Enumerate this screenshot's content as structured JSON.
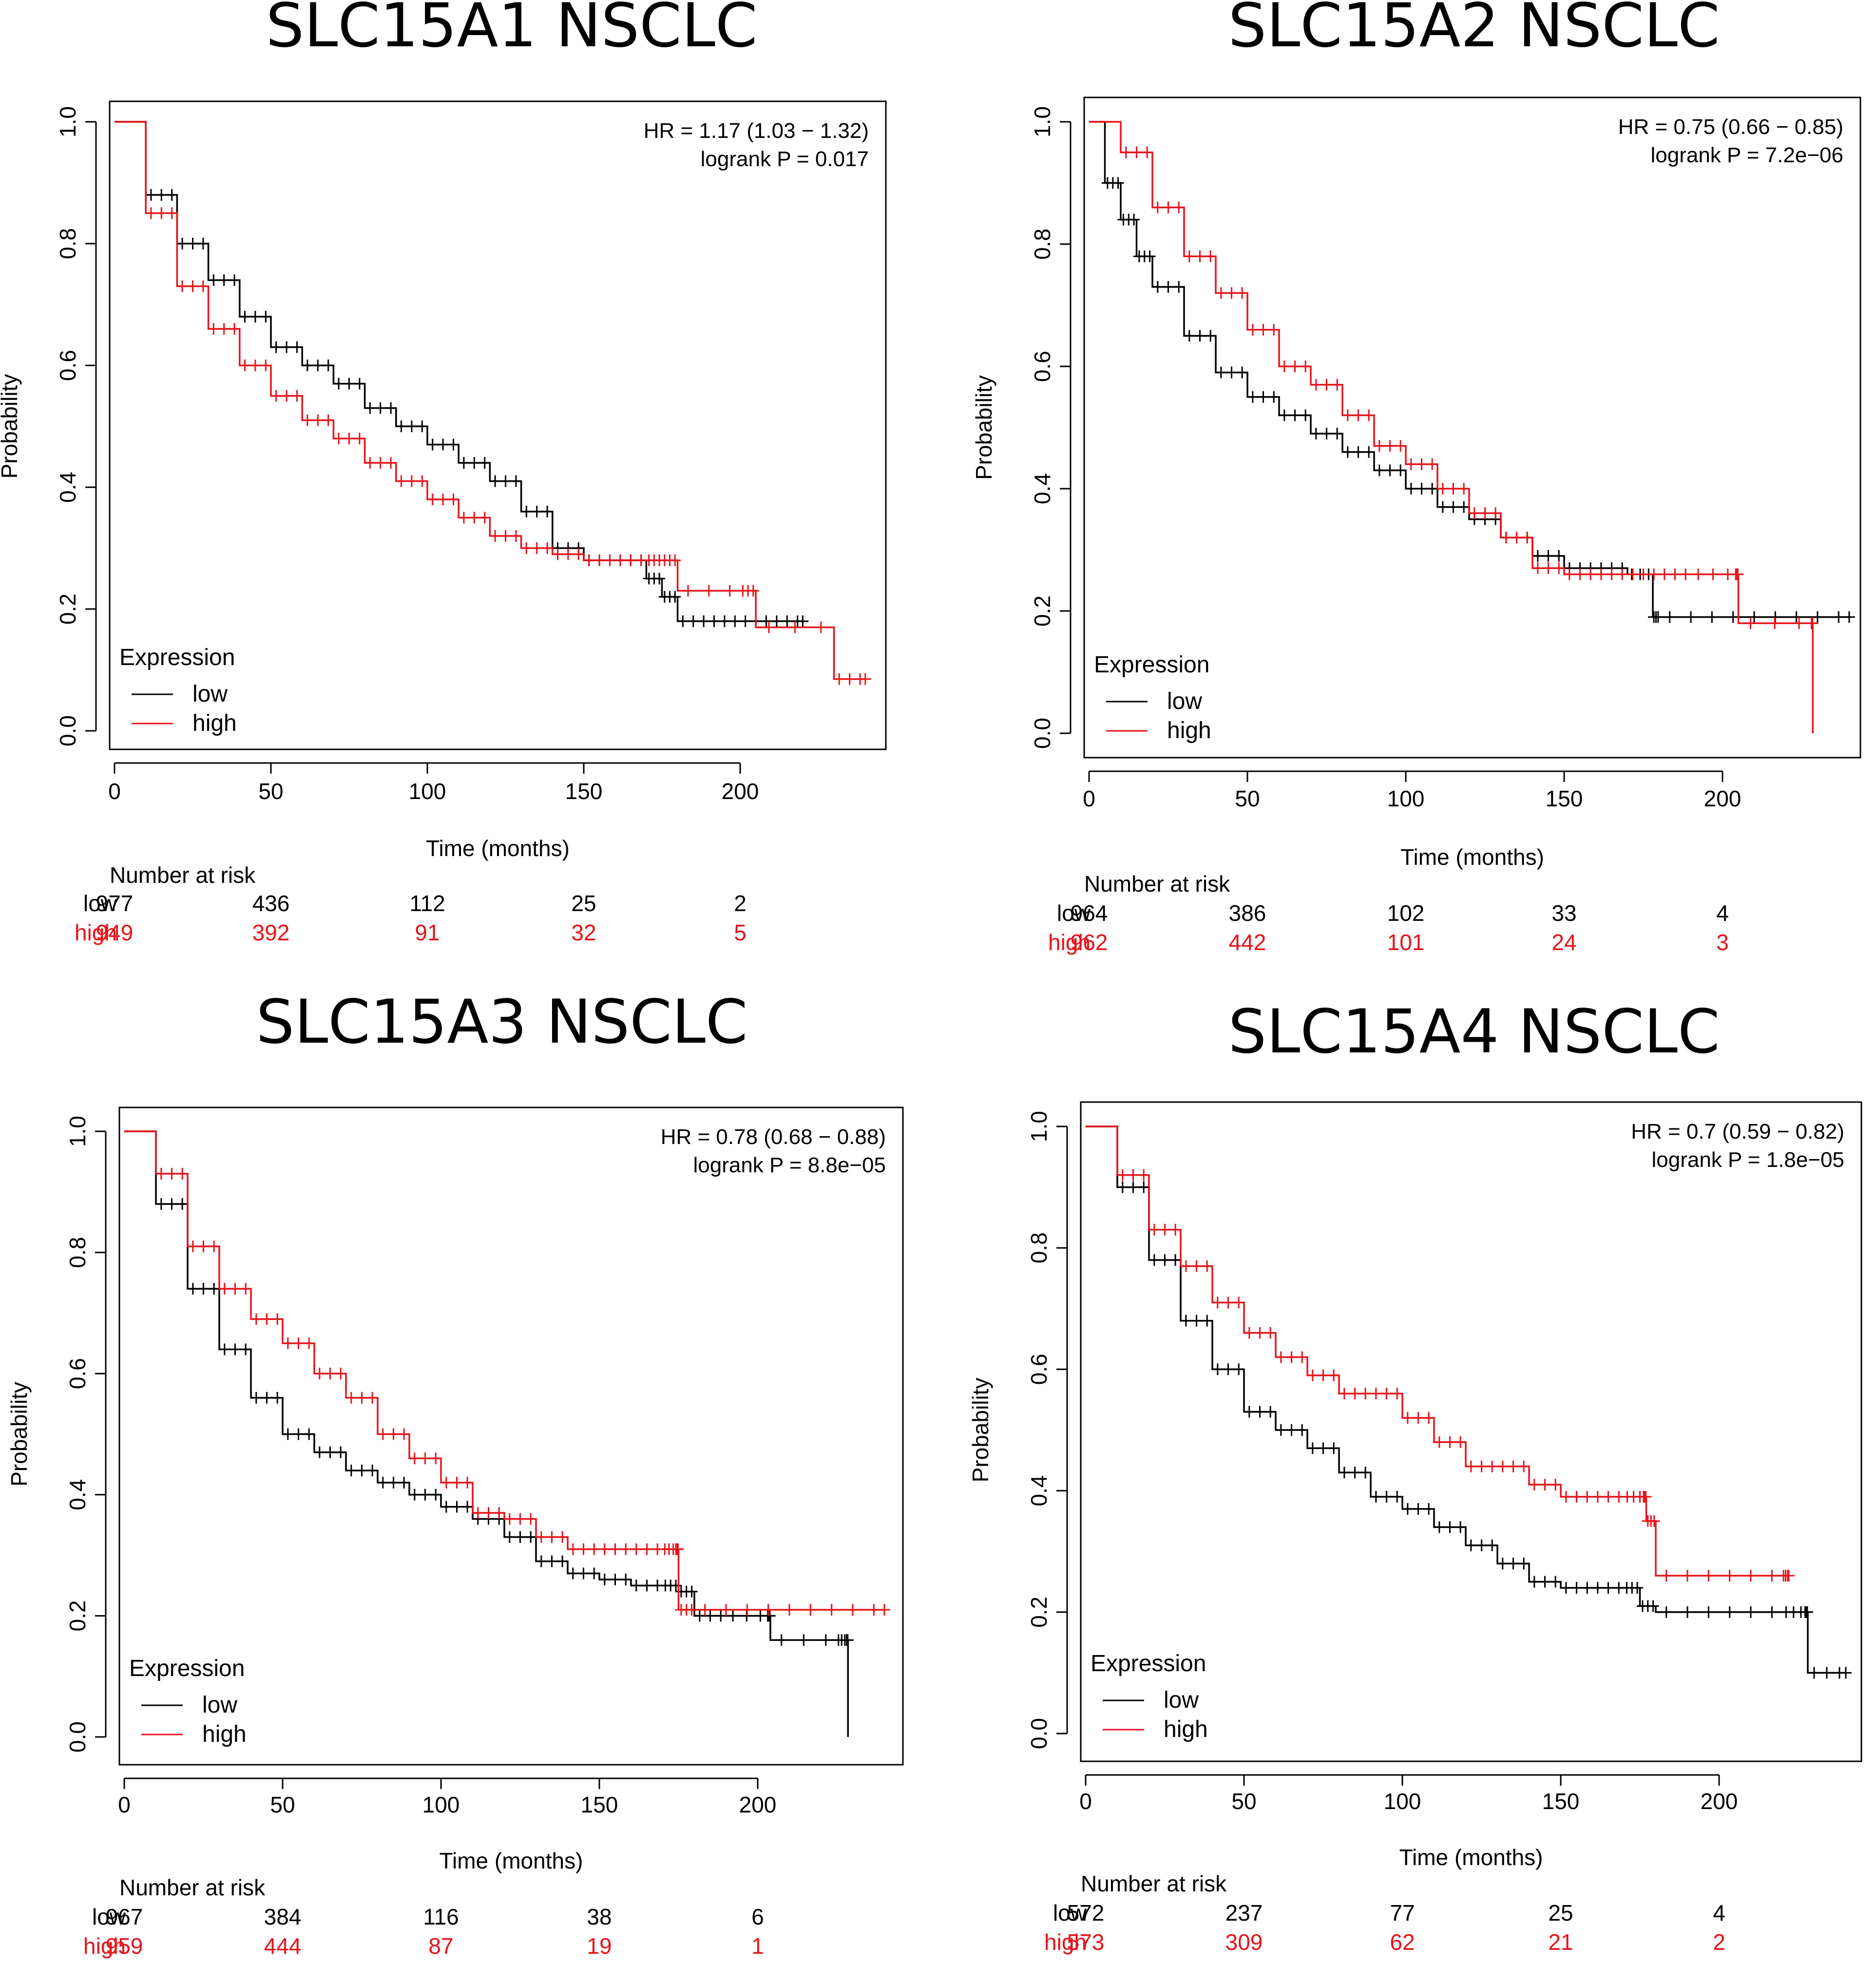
{
  "colors": {
    "low": "#000000",
    "high": "#e8121a",
    "axis": "#000000"
  },
  "chart_data": [
    {
      "type": "line",
      "title": "SLC15A1  NSCLC",
      "xlabel": "Time (months)",
      "ylabel": "Probability",
      "xlim": [
        0,
        250
      ],
      "ylim": [
        0,
        1
      ],
      "xticks": [
        "0",
        "50",
        "100",
        "150",
        "200"
      ],
      "yticks": [
        "0.0",
        "0.2",
        "0.4",
        "0.6",
        "0.8",
        "1.0"
      ],
      "hr_text": "HR = 1.17 (1.03 − 1.32)",
      "logrank_text": "logrank P = 0.017",
      "legend_title": "Expression",
      "risk_title": "Number at risk",
      "series": [
        {
          "name": "low",
          "color": "#000000",
          "x": [
            0,
            10,
            20,
            30,
            40,
            50,
            60,
            70,
            80,
            90,
            100,
            110,
            120,
            130,
            140,
            150,
            160,
            170,
            175,
            180,
            190,
            200,
            210,
            220
          ],
          "y": [
            1.0,
            0.88,
            0.8,
            0.74,
            0.68,
            0.63,
            0.6,
            0.57,
            0.53,
            0.5,
            0.47,
            0.44,
            0.41,
            0.36,
            0.3,
            0.28,
            0.28,
            0.25,
            0.22,
            0.18,
            0.18,
            0.18,
            0.18,
            0.18
          ],
          "risk_label": "low",
          "at_risk": [
            "977",
            "436",
            "112",
            "25",
            "2"
          ]
        },
        {
          "name": "high",
          "color": "#e8121a",
          "x": [
            0,
            10,
            20,
            30,
            40,
            50,
            60,
            70,
            80,
            90,
            100,
            110,
            120,
            130,
            140,
            150,
            160,
            170,
            175,
            180,
            200,
            205,
            230,
            240
          ],
          "y": [
            1.0,
            0.85,
            0.73,
            0.66,
            0.6,
            0.55,
            0.51,
            0.48,
            0.44,
            0.41,
            0.38,
            0.35,
            0.32,
            0.3,
            0.29,
            0.28,
            0.28,
            0.28,
            0.28,
            0.23,
            0.23,
            0.17,
            0.085,
            0.085
          ],
          "risk_label": "high",
          "at_risk": [
            "949",
            "392",
            "91",
            "32",
            "5"
          ]
        }
      ]
    },
    {
      "type": "line",
      "title": "SLC15A2 NSCLC",
      "xlabel": "Time (months)",
      "ylabel": "Probability",
      "xlim": [
        0,
        240
      ],
      "ylim": [
        0,
        1
      ],
      "xticks": [
        "0",
        "50",
        "100",
        "150",
        "200"
      ],
      "yticks": [
        "0.0",
        "0.2",
        "0.4",
        "0.6",
        "0.8",
        "1.0"
      ],
      "hr_text": "HR = 0.75 (0.66 − 0.85)",
      "logrank_text": "logrank P = 7.2e−06",
      "legend_title": "Expression",
      "risk_title": "Number at risk",
      "series": [
        {
          "name": "low",
          "color": "#000000",
          "x": [
            0,
            5,
            10,
            15,
            20,
            30,
            40,
            50,
            60,
            70,
            80,
            90,
            100,
            110,
            120,
            130,
            140,
            150,
            160,
            170,
            178,
            180,
            200,
            220,
            240
          ],
          "y": [
            1.0,
            0.9,
            0.84,
            0.78,
            0.73,
            0.65,
            0.59,
            0.55,
            0.52,
            0.49,
            0.46,
            0.43,
            0.4,
            0.37,
            0.35,
            0.32,
            0.29,
            0.27,
            0.27,
            0.26,
            0.19,
            0.19,
            0.19,
            0.19,
            0.19
          ],
          "risk_label": "low",
          "at_risk": [
            "964",
            "386",
            "102",
            "33",
            "4"
          ]
        },
        {
          "name": "high",
          "color": "#e8121a",
          "x": [
            0,
            10,
            20,
            30,
            40,
            50,
            60,
            70,
            80,
            90,
            100,
            110,
            120,
            130,
            140,
            150,
            160,
            170,
            180,
            190,
            204,
            205,
            228,
            228.5
          ],
          "y": [
            1.0,
            0.95,
            0.86,
            0.78,
            0.72,
            0.66,
            0.6,
            0.57,
            0.52,
            0.47,
            0.44,
            0.4,
            0.36,
            0.32,
            0.27,
            0.26,
            0.26,
            0.26,
            0.26,
            0.26,
            0.26,
            0.18,
            0.18,
            0.0
          ],
          "risk_label": "high",
          "at_risk": [
            "962",
            "442",
            "101",
            "24",
            "3"
          ]
        }
      ]
    },
    {
      "type": "line",
      "title": "SLC15A3 NSCLC",
      "xlabel": "Time (months)",
      "ylabel": "Probability",
      "xlim": [
        0,
        245
      ],
      "ylim": [
        0,
        1
      ],
      "xticks": [
        "0",
        "50",
        "100",
        "150",
        "200"
      ],
      "yticks": [
        "0.0",
        "0.2",
        "0.4",
        "0.6",
        "0.8",
        "1.0"
      ],
      "hr_text": "HR = 0.78 (0.68 − 0.88)",
      "logrank_text": "logrank P = 8.8e−05",
      "legend_title": "Expression",
      "risk_title": "Number at risk",
      "series": [
        {
          "name": "low",
          "color": "#000000",
          "x": [
            0,
            10,
            20,
            30,
            40,
            50,
            60,
            70,
            80,
            90,
            100,
            110,
            120,
            130,
            140,
            150,
            160,
            170,
            175,
            180,
            190,
            203,
            204,
            225,
            228,
            228.5
          ],
          "y": [
            1.0,
            0.88,
            0.74,
            0.64,
            0.56,
            0.5,
            0.47,
            0.44,
            0.42,
            0.4,
            0.38,
            0.36,
            0.33,
            0.29,
            0.27,
            0.26,
            0.25,
            0.25,
            0.24,
            0.2,
            0.2,
            0.2,
            0.16,
            0.16,
            0.16,
            0.0
          ],
          "risk_label": "low",
          "at_risk": [
            "967",
            "384",
            "116",
            "38",
            "6"
          ]
        },
        {
          "name": "high",
          "color": "#e8121a",
          "x": [
            0,
            10,
            20,
            30,
            40,
            50,
            60,
            70,
            80,
            90,
            100,
            110,
            120,
            130,
            140,
            150,
            160,
            170,
            174,
            175,
            180,
            200,
            220,
            240
          ],
          "y": [
            1.0,
            0.93,
            0.81,
            0.74,
            0.69,
            0.65,
            0.6,
            0.56,
            0.5,
            0.46,
            0.42,
            0.37,
            0.36,
            0.33,
            0.31,
            0.31,
            0.31,
            0.31,
            0.31,
            0.21,
            0.21,
            0.21,
            0.21,
            0.21
          ],
          "risk_label": "high",
          "at_risk": [
            "959",
            "444",
            "87",
            "19",
            "1"
          ]
        }
      ]
    },
    {
      "type": "line",
      "title": "SLC15A4 NSCLC",
      "xlabel": "Time (months)",
      "ylabel": "Probability",
      "xlim": [
        0,
        240
      ],
      "ylim": [
        0,
        1
      ],
      "xticks": [
        "0",
        "50",
        "100",
        "150",
        "200"
      ],
      "yticks": [
        "0.0",
        "0.2",
        "0.4",
        "0.6",
        "0.8",
        "1.0"
      ],
      "hr_text": "HR = 0.7 (0.59 − 0.82)",
      "logrank_text": "logrank P = 1.8e−05",
      "legend_title": "Expression",
      "risk_title": "Number at risk",
      "series": [
        {
          "name": "low",
          "color": "#000000",
          "x": [
            0,
            10,
            20,
            30,
            40,
            50,
            60,
            70,
            80,
            90,
            100,
            110,
            120,
            130,
            140,
            150,
            160,
            170,
            175,
            180,
            200,
            220,
            227,
            228,
            240
          ],
          "y": [
            1.0,
            0.9,
            0.78,
            0.68,
            0.6,
            0.53,
            0.5,
            0.47,
            0.43,
            0.39,
            0.37,
            0.34,
            0.31,
            0.28,
            0.25,
            0.24,
            0.24,
            0.24,
            0.21,
            0.2,
            0.2,
            0.2,
            0.2,
            0.1,
            0.1
          ],
          "risk_label": "low",
          "at_risk": [
            "572",
            "237",
            "77",
            "25",
            "4"
          ]
        },
        {
          "name": "high",
          "color": "#e8121a",
          "x": [
            0,
            10,
            20,
            30,
            40,
            50,
            60,
            70,
            80,
            90,
            100,
            110,
            120,
            130,
            140,
            150,
            160,
            170,
            176,
            177,
            180,
            200,
            220,
            222
          ],
          "y": [
            1.0,
            0.92,
            0.83,
            0.77,
            0.71,
            0.66,
            0.62,
            0.59,
            0.56,
            0.56,
            0.52,
            0.48,
            0.44,
            0.44,
            0.41,
            0.39,
            0.39,
            0.39,
            0.39,
            0.35,
            0.26,
            0.26,
            0.26,
            0.26
          ],
          "risk_label": "high",
          "at_risk": [
            "573",
            "309",
            "62",
            "21",
            "2"
          ]
        }
      ]
    }
  ]
}
